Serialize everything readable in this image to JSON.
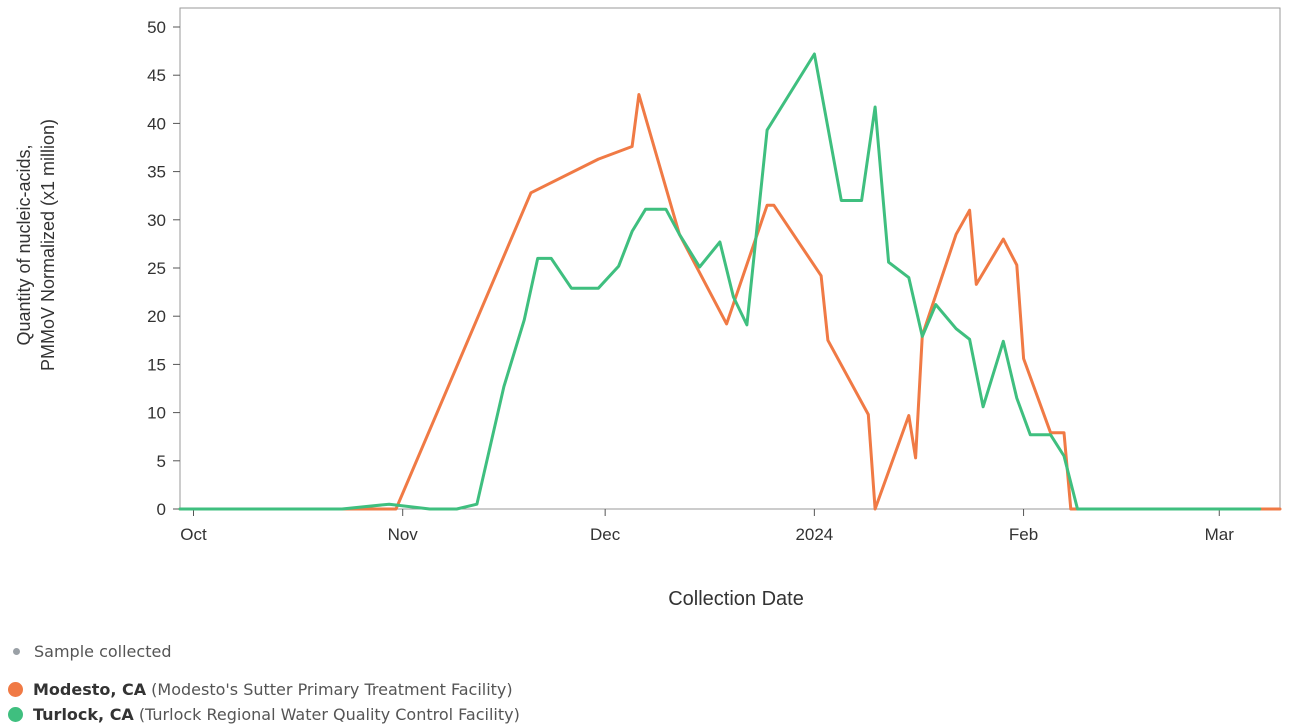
{
  "chart_data": {
    "type": "line",
    "title": "",
    "xlabel": "Collection Date",
    "ylabel": [
      "Quantity of nucleic-acids,",
      "PMMoV Normalized (x1 million)"
    ],
    "x_ticks": [
      {
        "date": "2023-10-01",
        "label": "Oct"
      },
      {
        "date": "2023-11-01",
        "label": "Nov"
      },
      {
        "date": "2023-12-01",
        "label": "Dec"
      },
      {
        "date": "2024-01-01",
        "label": "2024"
      },
      {
        "date": "2024-02-01",
        "label": "Feb"
      },
      {
        "date": "2024-03-01",
        "label": "Mar"
      }
    ],
    "xlim": [
      "2023-09-29",
      "2024-03-10"
    ],
    "ylim": [
      0,
      50
    ],
    "y_ticks": [
      0,
      5,
      10,
      15,
      20,
      25,
      30,
      35,
      40,
      45,
      50
    ],
    "grid": false,
    "series": [
      {
        "name": "Modesto, CA",
        "color": "#f07a45",
        "points": [
          [
            "2023-09-29",
            0
          ],
          [
            "2023-10-31",
            0
          ],
          [
            "2023-11-20",
            32.8
          ],
          [
            "2023-11-30",
            36.3
          ],
          [
            "2023-12-05",
            37.6
          ],
          [
            "2023-12-06",
            43.0
          ],
          [
            "2023-12-12",
            28.5
          ],
          [
            "2023-12-19",
            19.2
          ],
          [
            "2023-12-25",
            31.5
          ],
          [
            "2023-12-26",
            31.5
          ],
          [
            "2024-01-02",
            24.2
          ],
          [
            "2024-01-03",
            17.5
          ],
          [
            "2024-01-09",
            9.8
          ],
          [
            "2024-01-10",
            0
          ],
          [
            "2024-01-15",
            9.7
          ],
          [
            "2024-01-16",
            5.3
          ],
          [
            "2024-01-17",
            18.0
          ],
          [
            "2024-01-22",
            28.5
          ],
          [
            "2024-01-24",
            31.0
          ],
          [
            "2024-01-25",
            23.3
          ],
          [
            "2024-01-29",
            28.0
          ],
          [
            "2024-01-31",
            25.3
          ],
          [
            "2024-02-01",
            15.6
          ],
          [
            "2024-02-05",
            7.9
          ],
          [
            "2024-02-07",
            7.9
          ],
          [
            "2024-02-08",
            0
          ],
          [
            "2024-03-08",
            0
          ],
          [
            "2024-03-10",
            0
          ]
        ]
      },
      {
        "name": "Turlock, CA",
        "color": "#3fbf7f",
        "points": [
          [
            "2023-09-29",
            0
          ],
          [
            "2023-10-23",
            0
          ],
          [
            "2023-10-30",
            0.5
          ],
          [
            "2023-11-05",
            0
          ],
          [
            "2023-11-09",
            0
          ],
          [
            "2023-11-12",
            0.5
          ],
          [
            "2023-11-16",
            12.7
          ],
          [
            "2023-11-19",
            19.6
          ],
          [
            "2023-11-21",
            26.0
          ],
          [
            "2023-11-23",
            26.0
          ],
          [
            "2023-11-26",
            22.9
          ],
          [
            "2023-11-30",
            22.9
          ],
          [
            "2023-12-03",
            25.2
          ],
          [
            "2023-12-05",
            28.8
          ],
          [
            "2023-12-07",
            31.1
          ],
          [
            "2023-12-10",
            31.1
          ],
          [
            "2023-12-12",
            28.5
          ],
          [
            "2023-12-15",
            25.1
          ],
          [
            "2023-12-18",
            27.7
          ],
          [
            "2023-12-20",
            22.0
          ],
          [
            "2023-12-22",
            19.1
          ],
          [
            "2023-12-25",
            39.3
          ],
          [
            "2024-01-01",
            47.2
          ],
          [
            "2024-01-05",
            32.0
          ],
          [
            "2024-01-08",
            32.0
          ],
          [
            "2024-01-10",
            41.7
          ],
          [
            "2024-01-12",
            25.6
          ],
          [
            "2024-01-15",
            24.0
          ],
          [
            "2024-01-17",
            17.9
          ],
          [
            "2024-01-19",
            21.2
          ],
          [
            "2024-01-22",
            18.7
          ],
          [
            "2024-01-24",
            17.6
          ],
          [
            "2024-01-26",
            10.6
          ],
          [
            "2024-01-29",
            17.4
          ],
          [
            "2024-01-31",
            11.5
          ],
          [
            "2024-02-02",
            7.7
          ],
          [
            "2024-02-05",
            7.7
          ],
          [
            "2024-02-07",
            5.5
          ],
          [
            "2024-02-09",
            0
          ],
          [
            "2024-03-07",
            0
          ]
        ]
      }
    ]
  },
  "legend": {
    "sample_marker": {
      "label": "Sample collected",
      "color": "#9aa0a6"
    },
    "items": [
      {
        "name": "Modesto, CA",
        "detail": "(Modesto's Sutter Primary Treatment Facility)",
        "color": "#f07a45"
      },
      {
        "name": "Turlock, CA",
        "detail": "(Turlock Regional Water Quality Control Facility)",
        "color": "#3fbf7f"
      }
    ]
  }
}
